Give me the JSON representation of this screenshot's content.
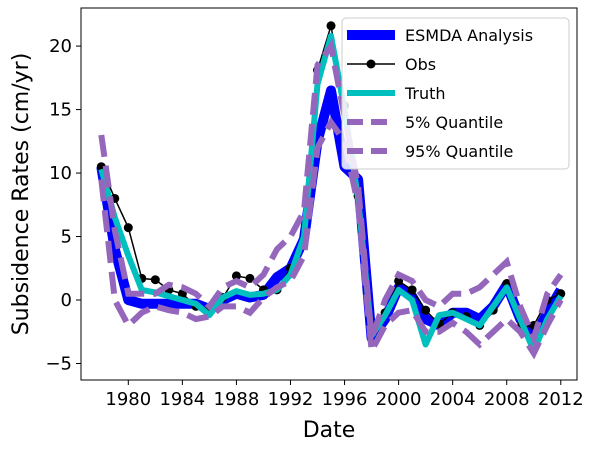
{
  "chart_data": {
    "type": "line",
    "xlabel": "Date",
    "ylabel": "Subsidence Rates (cm/yr)",
    "xlim": [
      1976.5,
      2013.2
    ],
    "ylim": [
      -6.3,
      23.0
    ],
    "xticks": [
      1980,
      1984,
      1988,
      1992,
      1996,
      2000,
      2004,
      2008,
      2012
    ],
    "xtick_labels": [
      "1980",
      "1984",
      "1988",
      "1992",
      "1996",
      "2000",
      "2004",
      "2008",
      "2012"
    ],
    "yticks": [
      -5,
      0,
      5,
      10,
      15,
      20
    ],
    "ytick_labels": [
      "−5",
      "0",
      "5",
      "10",
      "15",
      "20"
    ],
    "legend_position": "upper-right",
    "series": [
      {
        "name": "ESMDA Analysis",
        "color": "#0000ff",
        "style": "thick",
        "x": [
          1978,
          1979,
          1980,
          1981,
          1982,
          1983,
          1984,
          1985,
          1986,
          1987,
          1988,
          1989,
          1990,
          1991,
          1992,
          1993,
          1994,
          1995,
          1996,
          1997,
          1998,
          1999,
          2000,
          2001,
          2002,
          2003,
          2004,
          2005,
          2006,
          2007,
          2008,
          2009,
          2010,
          2011,
          2012
        ],
        "y": [
          10.5,
          4.0,
          0.0,
          -0.3,
          -0.3,
          -0.3,
          -0.3,
          -0.3,
          -0.7,
          0.0,
          0.5,
          0.2,
          0.4,
          1.8,
          2.5,
          4.8,
          12.5,
          16.5,
          10.5,
          9.5,
          -3.0,
          -1.5,
          1.0,
          0.3,
          -1.5,
          -2.0,
          -1.0,
          -1.0,
          -1.5,
          -0.5,
          1.2,
          -1.5,
          -3.0,
          -1.0,
          0.8
        ]
      },
      {
        "name": "Obs",
        "color": "#000000",
        "style": "line-dot",
        "x": [
          1978,
          1979,
          1980,
          1981,
          1982,
          1983,
          1984,
          1985,
          1986,
          1987,
          1988,
          1989,
          1990,
          1991,
          1992,
          1993,
          1994,
          1995,
          1996,
          1997,
          1998,
          1999,
          2000,
          2001,
          2002,
          2003,
          2004,
          2005,
          2006,
          2007,
          2008,
          2009,
          2010,
          2011,
          2012
        ],
        "y": [
          10.5,
          8.0,
          5.7,
          1.7,
          1.6,
          0.8,
          0.5,
          -0.5,
          -0.8,
          0.2,
          1.9,
          1.7,
          0.8,
          0.8,
          2.5,
          4.5,
          18.1,
          21.6,
          15.3,
          8.2,
          -2.0,
          -1.0,
          1.5,
          0.8,
          -0.8,
          -1.9,
          -1.0,
          -1.3,
          -2.0,
          -0.8,
          1.3,
          -2.2,
          -2.0,
          0.0,
          0.5
        ]
      },
      {
        "name": "Truth",
        "color": "#00bfbf",
        "style": "thick",
        "x": [
          1978,
          1979,
          1980,
          1981,
          1982,
          1983,
          1984,
          1985,
          1986,
          1987,
          1988,
          1989,
          1990,
          1991,
          1992,
          1993,
          1994,
          1995,
          1996,
          1997,
          1998,
          1999,
          2000,
          2001,
          2002,
          2003,
          2004,
          2005,
          2006,
          2007,
          2008,
          2009,
          2010,
          2011,
          2012
        ],
        "y": [
          10.3,
          6.5,
          3.5,
          0.8,
          0.6,
          0.3,
          0.0,
          -0.3,
          -1.2,
          0.2,
          0.7,
          0.4,
          0.5,
          0.8,
          2.0,
          5.0,
          17.0,
          20.8,
          15.0,
          8.0,
          -2.8,
          -1.2,
          0.8,
          0.0,
          -3.5,
          -1.2,
          -1.0,
          -1.5,
          -2.0,
          -0.5,
          1.0,
          -1.5,
          -4.0,
          -1.5,
          0.3
        ]
      },
      {
        "name": "5% Quantile",
        "color": "#9467bd",
        "style": "dashed",
        "x": [
          1978,
          1979,
          1980,
          1981,
          1982,
          1983,
          1984,
          1985,
          1986,
          1987,
          1988,
          1989,
          1990,
          1991,
          1992,
          1993,
          1994,
          1995,
          1996,
          1997,
          1998,
          1999,
          2000,
          2001,
          2002,
          2003,
          2004,
          2005,
          2006,
          2007,
          2008,
          2009,
          2010,
          2011,
          2012
        ],
        "y": [
          9.5,
          0.0,
          -2.0,
          -1.0,
          -0.5,
          -0.8,
          -1.0,
          -1.5,
          -1.3,
          -0.5,
          -0.5,
          -1.0,
          0.2,
          1.0,
          1.5,
          3.5,
          12.0,
          14.0,
          12.5,
          7.5,
          -4.0,
          -2.0,
          -1.0,
          -0.8,
          -2.5,
          -2.5,
          -1.8,
          -2.5,
          -3.5,
          -2.5,
          -1.5,
          -2.5,
          -4.2,
          -2.0,
          0.0
        ]
      },
      {
        "name": "95% Quantile",
        "color": "#9467bd",
        "style": "dashed",
        "x": [
          1978,
          1979,
          1980,
          1981,
          1982,
          1983,
          1984,
          1985,
          1986,
          1987,
          1988,
          1989,
          1990,
          1991,
          1992,
          1993,
          1994,
          1995,
          1996,
          1997,
          1998,
          1999,
          2000,
          2001,
          2002,
          2003,
          2004,
          2005,
          2006,
          2007,
          2008,
          2009,
          2010,
          2011,
          2012
        ],
        "y": [
          13.0,
          5.5,
          0.5,
          0.5,
          0.5,
          1.2,
          1.0,
          0.5,
          -0.5,
          1.0,
          1.5,
          1.0,
          2.0,
          4.0,
          5.0,
          7.0,
          18.5,
          20.0,
          14.5,
          9.0,
          -3.0,
          0.0,
          2.0,
          1.5,
          0.0,
          -0.5,
          0.5,
          0.5,
          1.0,
          2.0,
          3.0,
          -0.5,
          -3.0,
          0.5,
          2.0
        ]
      }
    ]
  }
}
